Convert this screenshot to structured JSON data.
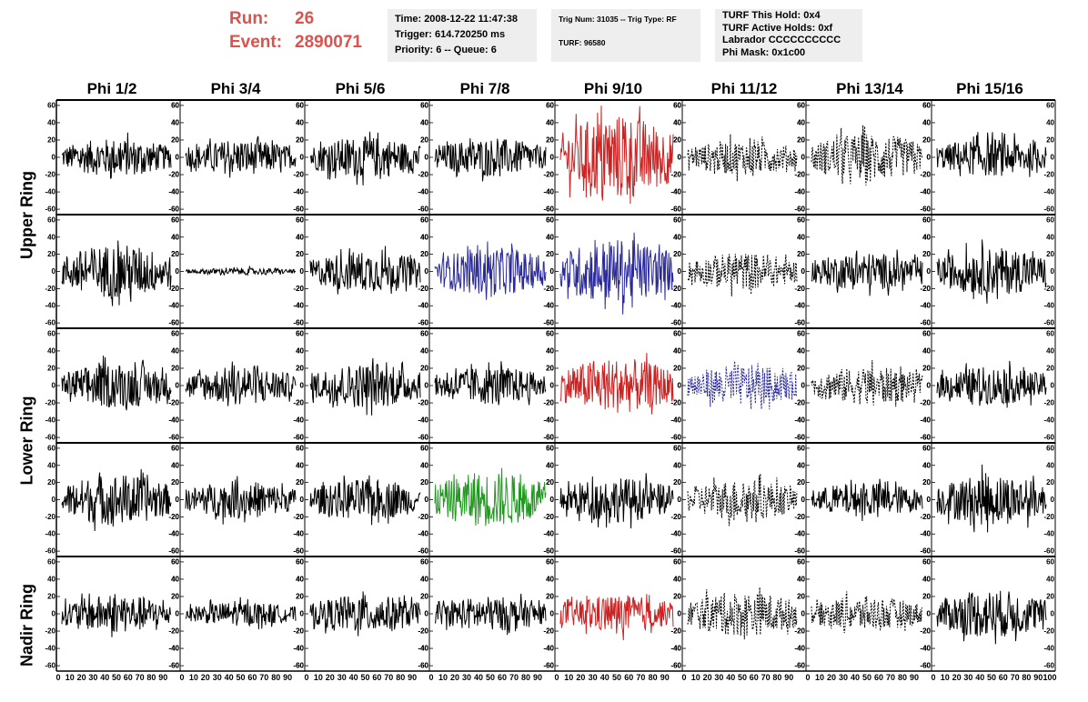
{
  "header": {
    "run_label": "Run:",
    "run_value": "26",
    "event_label": "Event:",
    "event_value": "2890071"
  },
  "info_panel_1": {
    "time": "Time: 2008-12-22 11:47:38",
    "trigger": "Trigger: 614.720250 ms",
    "priority": "Priority: 6 -- Queue: 6"
  },
  "info_panel_2": {
    "trig": "Trig Num: 31035 -- Trig Type: RF",
    "turf": "TURF: 96580"
  },
  "info_panel_3": {
    "hold": "TURF This Hold: 0x4",
    "active": "TURF Active Holds: 0xf",
    "labrador": "Labrador CCCCCCCCCC",
    "phimask": "Phi Mask: 0x1c00"
  },
  "columns": [
    "Phi 1/2",
    "Phi 3/4",
    "Phi 5/6",
    "Phi 7/8",
    "Phi 9/10",
    "Phi 11/12",
    "Phi 13/14",
    "Phi 15/16"
  ],
  "rings": [
    "Upper Ring",
    "Lower Ring",
    "Nadir Ring"
  ],
  "axis": {
    "y_ticks": [
      "60",
      "40",
      "20",
      "0",
      "-20",
      "-40",
      "-60"
    ],
    "x_ticks_first": [
      "0",
      "10",
      "20",
      "30",
      "40",
      "50",
      "60",
      "70",
      "80",
      "90",
      "100"
    ],
    "ylim": [
      -62,
      62
    ],
    "xlim": [
      0,
      100
    ]
  },
  "colors": {
    "header_red": "#d9534f",
    "trace_black": "#000000",
    "trace_red": "#cc2222",
    "trace_blue": "#2a2a9a",
    "trace_green": "#1f9a1f",
    "panel_bg": "#eeeeee"
  },
  "chart_data": {
    "type": "line",
    "rows": 5,
    "cols": 8,
    "panels": [
      {
        "row": 0,
        "cols": [
          {
            "c": 0,
            "color": "black",
            "amp": 22
          },
          {
            "c": 1,
            "color": "black",
            "amp": 20
          },
          {
            "c": 2,
            "color": "black",
            "amp": 24
          },
          {
            "c": 3,
            "color": "black",
            "amp": 22
          },
          {
            "c": 4,
            "color": "red",
            "amp": 50
          },
          {
            "c": 5,
            "color": "black",
            "amp": 20,
            "dashed": true
          },
          {
            "c": 6,
            "color": "black",
            "amp": 28,
            "dashed": true
          },
          {
            "c": 7,
            "color": "black",
            "amp": 22
          }
        ]
      },
      {
        "row": 1,
        "cols": [
          {
            "c": 0,
            "color": "black",
            "amp": 32
          },
          {
            "c": 1,
            "color": "black",
            "amp": 4
          },
          {
            "c": 2,
            "color": "black",
            "amp": 24
          },
          {
            "c": 3,
            "color": "blue",
            "amp": 28
          },
          {
            "c": 4,
            "color": "blue",
            "amp": 38
          },
          {
            "c": 5,
            "color": "black",
            "amp": 22,
            "dashed": true
          },
          {
            "c": 6,
            "color": "black",
            "amp": 22
          },
          {
            "c": 7,
            "color": "black",
            "amp": 28
          }
        ]
      },
      {
        "row": 2,
        "cols": [
          {
            "c": 0,
            "color": "black",
            "amp": 26
          },
          {
            "c": 1,
            "color": "black",
            "amp": 22
          },
          {
            "c": 2,
            "color": "black",
            "amp": 26
          },
          {
            "c": 3,
            "color": "black",
            "amp": 22
          },
          {
            "c": 4,
            "color": "red",
            "amp": 32
          },
          {
            "c": 5,
            "color": "blue",
            "amp": 24,
            "dashed": true
          },
          {
            "c": 6,
            "color": "black",
            "amp": 22,
            "dashed": true
          },
          {
            "c": 7,
            "color": "black",
            "amp": 22
          }
        ]
      },
      {
        "row": 3,
        "cols": [
          {
            "c": 0,
            "color": "black",
            "amp": 30
          },
          {
            "c": 1,
            "color": "black",
            "amp": 22
          },
          {
            "c": 2,
            "color": "black",
            "amp": 24
          },
          {
            "c": 3,
            "color": "green",
            "amp": 32
          },
          {
            "c": 4,
            "color": "black",
            "amp": 26
          },
          {
            "c": 5,
            "color": "black",
            "amp": 24,
            "dashed": true
          },
          {
            "c": 6,
            "color": "black",
            "amp": 20
          },
          {
            "c": 7,
            "color": "black",
            "amp": 30
          }
        ]
      },
      {
        "row": 4,
        "cols": [
          {
            "c": 0,
            "color": "black",
            "amp": 22
          },
          {
            "c": 1,
            "color": "black",
            "amp": 14
          },
          {
            "c": 2,
            "color": "black",
            "amp": 22
          },
          {
            "c": 3,
            "color": "black",
            "amp": 20
          },
          {
            "c": 4,
            "color": "red",
            "amp": 22
          },
          {
            "c": 5,
            "color": "black",
            "amp": 26,
            "dashed": true
          },
          {
            "c": 6,
            "color": "black",
            "amp": 20,
            "dashed": true
          },
          {
            "c": 7,
            "color": "black",
            "amp": 28
          }
        ]
      }
    ]
  }
}
